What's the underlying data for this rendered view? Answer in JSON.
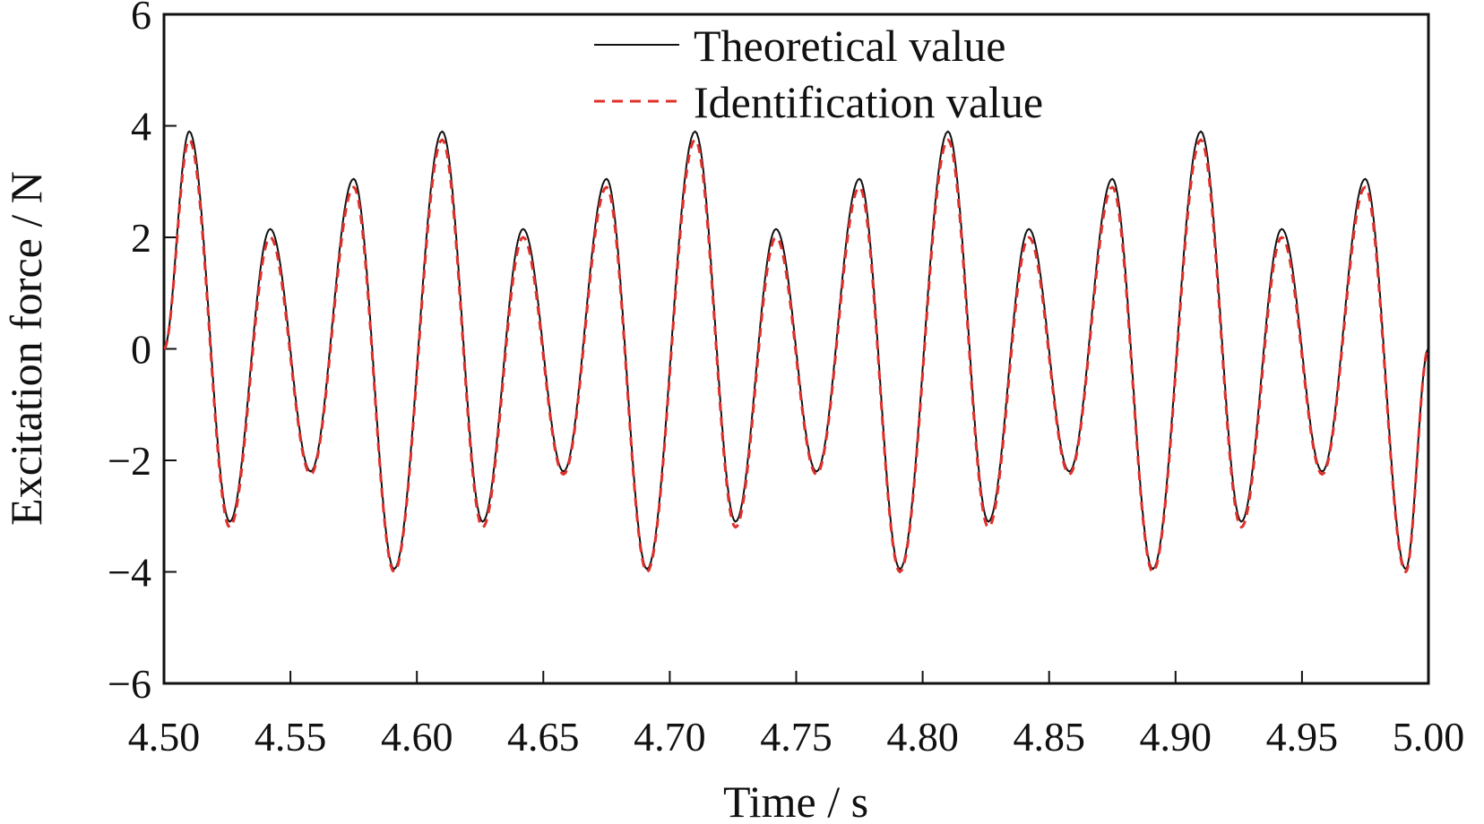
{
  "chart_data": {
    "type": "line",
    "xlabel": "Time / s",
    "ylabel": "Excitation force / N",
    "xlim": [
      4.5,
      5.0
    ],
    "ylim": [
      -6,
      6
    ],
    "x_ticks": [
      4.5,
      4.55,
      4.6,
      4.65,
      4.7,
      4.75,
      4.8,
      4.85,
      4.9,
      4.95,
      5.0
    ],
    "x_tick_labels": [
      "4.50",
      "4.55",
      "4.60",
      "4.65",
      "4.70",
      "4.75",
      "4.80",
      "4.85",
      "4.90",
      "4.95",
      "5.00"
    ],
    "y_ticks": [
      -6,
      -4,
      -2,
      0,
      2,
      4,
      6
    ],
    "y_tick_labels": [
      "−6",
      "−4",
      "−2",
      "0",
      "2",
      "4",
      "6"
    ],
    "grid": false,
    "legend_position": "top-center",
    "series": [
      {
        "name": "Theoretical value",
        "color": "#111111",
        "style": "solid",
        "x": [
          4.5,
          4.51,
          4.526,
          4.542,
          4.558,
          4.575,
          4.591,
          4.61,
          4.626,
          4.642,
          4.658,
          4.675,
          4.691,
          4.71,
          4.726,
          4.742,
          4.758,
          4.775,
          4.791,
          4.81,
          4.826,
          4.842,
          4.858,
          4.875,
          4.891,
          4.91,
          4.926,
          4.942,
          4.958,
          4.975,
          4.991,
          5.0
        ],
        "y": [
          0,
          3.9,
          -3.1,
          2.15,
          -2.2,
          3.05,
          -3.95,
          3.9,
          -3.1,
          2.15,
          -2.2,
          3.05,
          -3.95,
          3.9,
          -3.1,
          2.15,
          -2.2,
          3.05,
          -3.95,
          3.9,
          -3.1,
          2.15,
          -2.2,
          3.05,
          -3.95,
          3.9,
          -3.1,
          2.15,
          -2.2,
          3.05,
          -3.95,
          0
        ]
      },
      {
        "name": "Identification value",
        "color": "#e0302b",
        "style": "dashed",
        "x": [
          4.5,
          4.51,
          4.526,
          4.542,
          4.558,
          4.575,
          4.591,
          4.61,
          4.626,
          4.642,
          4.658,
          4.675,
          4.691,
          4.71,
          4.726,
          4.742,
          4.758,
          4.775,
          4.791,
          4.81,
          4.826,
          4.842,
          4.858,
          4.875,
          4.891,
          4.91,
          4.926,
          4.942,
          4.958,
          4.975,
          4.991,
          5.0
        ],
        "y": [
          0,
          3.75,
          -3.2,
          2.0,
          -2.25,
          2.9,
          -4.0,
          3.75,
          -3.2,
          2.0,
          -2.25,
          2.9,
          -4.0,
          3.75,
          -3.2,
          2.0,
          -2.25,
          2.9,
          -4.0,
          3.75,
          -3.2,
          2.0,
          -2.25,
          2.9,
          -4.0,
          3.75,
          -3.2,
          2.0,
          -2.25,
          2.9,
          -4.0,
          0
        ]
      }
    ]
  }
}
